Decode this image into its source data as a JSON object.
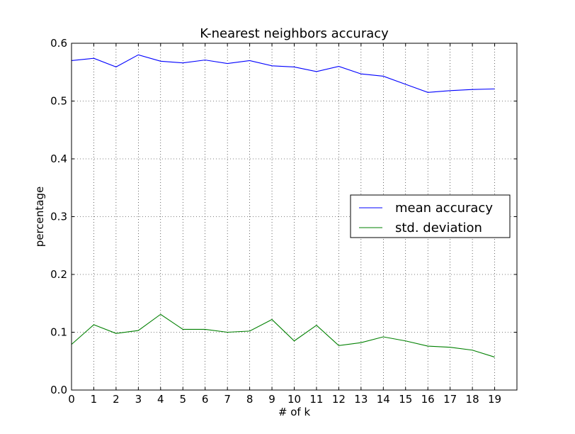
{
  "chart_data": {
    "type": "line",
    "title": "K-nearest neighbors accuracy",
    "xlabel": "# of k",
    "ylabel": "percentage",
    "xlim": [
      0,
      20
    ],
    "ylim": [
      0,
      0.6
    ],
    "x_ticks": [
      0,
      1,
      2,
      3,
      4,
      5,
      6,
      7,
      8,
      9,
      10,
      11,
      12,
      13,
      14,
      15,
      16,
      17,
      18,
      19
    ],
    "x_tick_labels": [
      "0",
      "1",
      "2",
      "3",
      "4",
      "5",
      "6",
      "7",
      "8",
      "9",
      "10",
      "11",
      "12",
      "13",
      "14",
      "15",
      "16",
      "17",
      "18",
      "19"
    ],
    "y_ticks": [
      0,
      0.1,
      0.2,
      0.3,
      0.4,
      0.5,
      0.6
    ],
    "y_tick_labels": [
      "0.0",
      "0.1",
      "0.2",
      "0.3",
      "0.4",
      "0.5",
      "0.6"
    ],
    "grid": true,
    "legend_position": "center-right",
    "x": [
      0,
      1,
      2,
      3,
      4,
      5,
      6,
      7,
      8,
      9,
      10,
      11,
      12,
      13,
      14,
      15,
      16,
      17,
      18,
      19
    ],
    "series": [
      {
        "name": "mean accuracy",
        "color": "#0000ff",
        "values": [
          0.57,
          0.574,
          0.559,
          0.58,
          0.569,
          0.566,
          0.571,
          0.565,
          0.57,
          0.561,
          0.559,
          0.551,
          0.56,
          0.547,
          0.543,
          0.529,
          0.515,
          0.518,
          0.52,
          0.521
        ]
      },
      {
        "name": "std. deviation",
        "color": "#008000",
        "values": [
          0.079,
          0.113,
          0.098,
          0.103,
          0.131,
          0.105,
          0.105,
          0.1,
          0.102,
          0.122,
          0.085,
          0.112,
          0.077,
          0.082,
          0.092,
          0.085,
          0.076,
          0.074,
          0.069,
          0.057
        ]
      }
    ]
  }
}
